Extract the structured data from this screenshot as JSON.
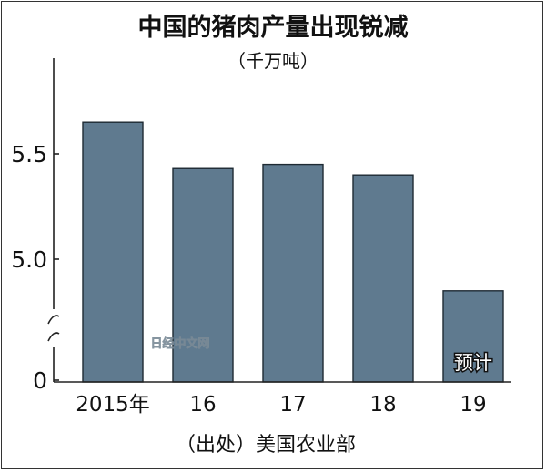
{
  "chart_data": {
    "type": "bar",
    "title": "中国的猪肉产量出现锐减",
    "subtitle": "（千万吨）",
    "categories": [
      "2015年",
      "16",
      "17",
      "18",
      "19"
    ],
    "values": [
      5.65,
      5.43,
      5.45,
      5.4,
      4.85
    ],
    "bar_annotations": [
      "",
      "",
      "",
      "",
      "预计"
    ],
    "y_ticks": [
      {
        "label": "5.5",
        "value": 5.5
      },
      {
        "label": "5.0",
        "value": 5.0
      },
      {
        "label": "0",
        "value": 0
      }
    ],
    "axis_break": true,
    "ylim": [
      4.55,
      5.95
    ],
    "grid": false,
    "source": "（出处）美国农业部",
    "watermark": "日经中文网",
    "colors": {
      "bar": "#5f7a8f",
      "bar_edge": "#1e2a33",
      "axis": "#222222",
      "text": "#111111"
    }
  }
}
